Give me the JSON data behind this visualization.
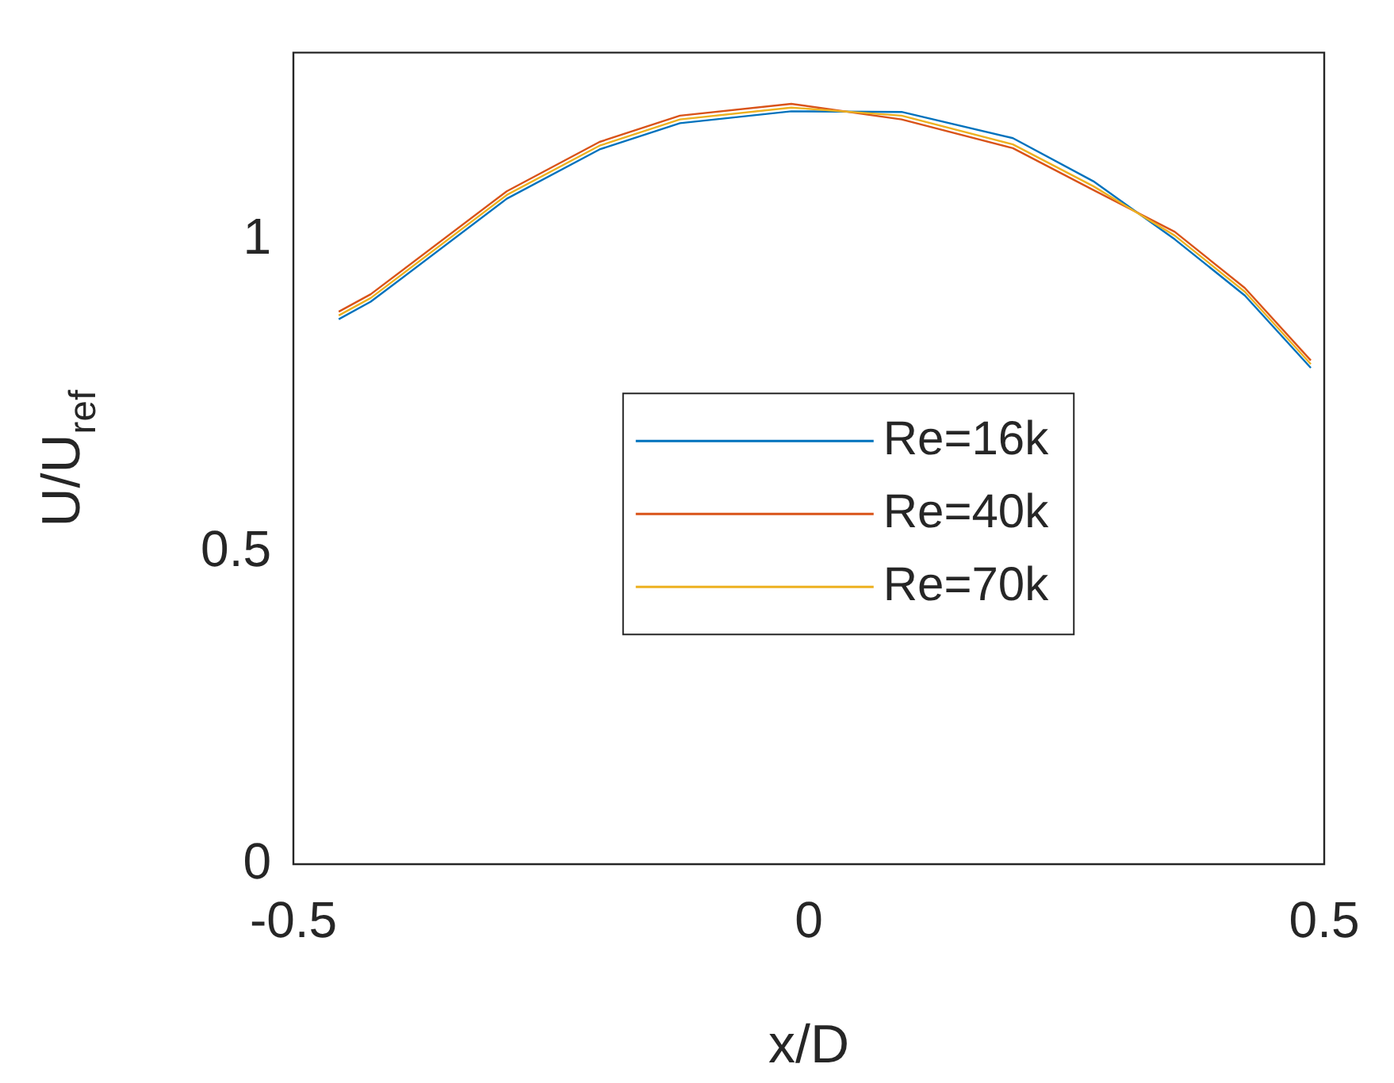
{
  "chart_data": {
    "type": "line",
    "xlabel": "x/D",
    "ylabel": "U/U$_{ref}$",
    "xlim": [
      -0.5,
      0.5
    ],
    "xticks": [
      -0.5,
      0,
      0.5
    ],
    "ylim": [
      0,
      1.3
    ],
    "yticks": [
      0,
      0.5,
      1
    ],
    "grid": false,
    "legend": "center",
    "marker": "none",
    "line_style": "solid",
    "x": [
      -0.456,
      -0.425,
      -0.293,
      -0.203,
      -0.125,
      -0.017,
      0.09,
      0.198,
      0.276,
      0.355,
      0.423,
      0.487
    ],
    "series": [
      {
        "name": "Re=16k",
        "color": "#0072bd",
        "values": [
          0.873,
          0.901,
          1.066,
          1.145,
          1.187,
          1.206,
          1.205,
          1.163,
          1.094,
          1.001,
          0.911,
          0.795
        ]
      },
      {
        "name": "Re=40k",
        "color": "#d95319",
        "values": [
          0.885,
          0.913,
          1.078,
          1.157,
          1.199,
          1.218,
          1.193,
          1.147,
          1.08,
          1.013,
          0.923,
          0.807
        ]
      },
      {
        "name": "Re=70k",
        "color": "#edb120",
        "values": [
          0.879,
          0.907,
          1.072,
          1.151,
          1.193,
          1.212,
          1.199,
          1.153,
          1.086,
          1.007,
          0.917,
          0.801
        ]
      }
    ]
  }
}
